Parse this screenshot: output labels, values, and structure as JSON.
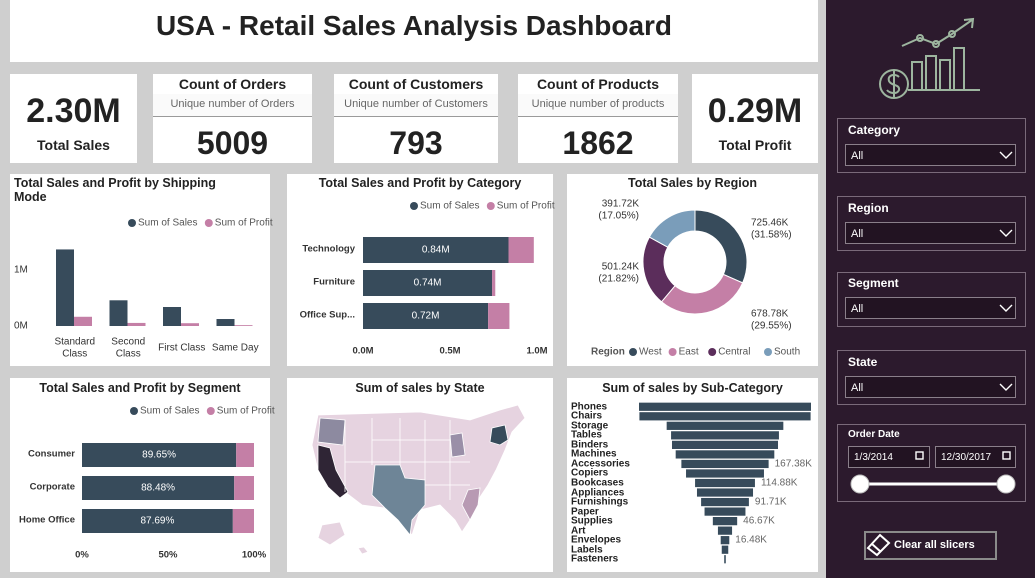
{
  "header": {
    "title": "USA - Retail Sales Analysis Dashboard"
  },
  "kpis": [
    {
      "value": "2.30M",
      "label": "Total Sales"
    },
    {
      "title": "Count of Orders",
      "subtitle": "Unique number of Orders",
      "value": 5009
    },
    {
      "title": "Count of Customers",
      "subtitle": "Unique number of Customers",
      "value": 793
    },
    {
      "title": "Count of Products",
      "subtitle": "Unique number of products",
      "value": 1862
    },
    {
      "value": "0.29M",
      "label": "Total Profit"
    }
  ],
  "chart_data": [
    {
      "type": "bar",
      "title": "Total Sales and Profit by Shipping Mode",
      "categories": [
        "Standard Class",
        "Second Class",
        "First Class",
        "Same Day"
      ],
      "series": [
        {
          "name": "Sum of Sales",
          "color": "#374b5b",
          "values": [
            1370000,
            460000,
            340000,
            125000
          ]
        },
        {
          "name": "Sum of Profit",
          "color": "#c47fa6",
          "values": [
            165000,
            55000,
            50000,
            15000
          ]
        }
      ],
      "ylim": [
        0,
        1700000
      ],
      "yticks": [
        {
          "value": 0,
          "label": "0M"
        },
        {
          "value": 1000000,
          "label": "1M"
        }
      ]
    },
    {
      "type": "stacked_bar",
      "title": "Total Sales and Profit by Category",
      "categories": [
        "Technology",
        "Furniture",
        "Office Sup..."
      ],
      "series": [
        {
          "name": "Sum of Sales",
          "color": "#374b5b",
          "values": [
            836220,
            741720,
            719050
          ],
          "value_labels": [
            "0.84M",
            "0.74M",
            "0.72M"
          ]
        },
        {
          "name": "Sum of Profit",
          "color": "#c47fa6",
          "values": [
            145455,
            18451,
            122491
          ]
        }
      ],
      "xlim": [
        0,
        1000000
      ],
      "xticks": [
        {
          "value": 0,
          "label": "0.0M"
        },
        {
          "value": 500000,
          "label": "0.5M"
        },
        {
          "value": 1000000,
          "label": "1.0M"
        }
      ]
    },
    {
      "type": "donut",
      "title": "Total Sales by Region",
      "legend_title": "Region",
      "categories": [
        "West",
        "East",
        "Central",
        "South"
      ],
      "colors": [
        "#374b5b",
        "#c47fa6",
        "#5b2d5b",
        "#7a9dba"
      ],
      "values": [
        725460,
        678780,
        501240,
        391720
      ],
      "value_labels": [
        "725.46K (31.58%)",
        "678.78K (29.55%)",
        "501.24K (21.82%)",
        "391.72K (17.05%)"
      ]
    },
    {
      "type": "stacked_bar",
      "title": "Total Sales and Profit by Segment",
      "categories": [
        "Consumer",
        "Corporate",
        "Home Office"
      ],
      "series": [
        {
          "name": "Sum of Sales",
          "color": "#374b5b",
          "values": [
            89.65,
            88.48,
            87.69
          ],
          "value_labels": [
            "89.65%",
            "88.48%",
            "87.69%"
          ]
        },
        {
          "name": "Sum of Profit",
          "color": "#c47fa6",
          "values": [
            10.35,
            11.52,
            12.31
          ]
        }
      ],
      "xlim": [
        0,
        100
      ],
      "xticks": [
        {
          "value": 0,
          "label": "0%"
        },
        {
          "value": 50,
          "label": "50%"
        },
        {
          "value": 100,
          "label": "100%"
        }
      ]
    },
    {
      "type": "map",
      "title": "Sum of sales by State"
    },
    {
      "type": "funnel",
      "title": "Sum of sales by Sub-Category",
      "color": "#374b5b",
      "categories": [
        "Phones",
        "Chairs",
        "Storage",
        "Tables",
        "Binders",
        "Machines",
        "Accessories",
        "Copiers",
        "Bookcases",
        "Appliances",
        "Furnishings",
        "Paper",
        "Supplies",
        "Art",
        "Envelopes",
        "Labels",
        "Fasteners"
      ],
      "values": [
        330007,
        328449,
        223844,
        206966,
        203413,
        189239,
        167380,
        149528,
        114880,
        107532,
        91705,
        78479,
        46674,
        27119,
        16476,
        12486,
        3024
      ],
      "value_labels": [
        null,
        null,
        null,
        null,
        null,
        null,
        "167.38K",
        null,
        "114.88K",
        null,
        "91.71K",
        null,
        "46.67K",
        null,
        "16.48K",
        null,
        null
      ]
    }
  ],
  "slicers": {
    "filters": [
      {
        "label": "Category",
        "value": "All"
      },
      {
        "label": "Region",
        "value": "All"
      },
      {
        "label": "Segment",
        "value": "All"
      },
      {
        "label": "State",
        "value": "All"
      }
    ],
    "date": {
      "label": "Order Date",
      "start": "1/3/2014",
      "end": "12/30/2017"
    },
    "clear_button": "Clear all slicers"
  }
}
